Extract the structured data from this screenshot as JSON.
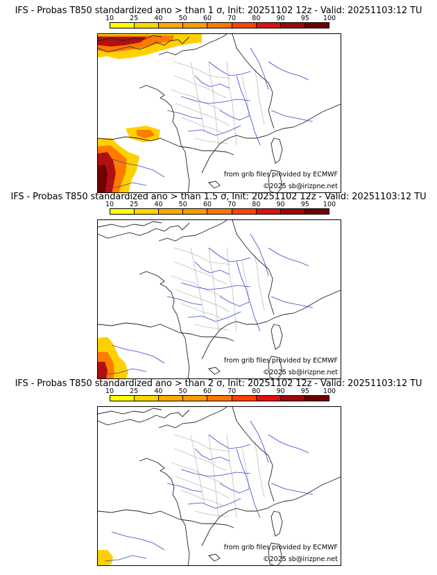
{
  "panels": [
    {
      "title": "IFS - Probas T850  standardized ano > than 1 σ, Init: 20251102 12z - Valid: 20251103:12 TU"
    },
    {
      "title": "IFS - Probas T850  standardized ano > than 1.5 σ, Init: 20251102 12z - Valid: 20251103:12 TU"
    },
    {
      "title": "IFS - Probas T850  standardized ano > than 2 σ, Init: 20251102 12z - Valid: 20251103:12 TU"
    }
  ],
  "colorbar": {
    "ticks": [
      "10",
      "25",
      "40",
      "50",
      "60",
      "70",
      "80",
      "90",
      "95",
      "100"
    ],
    "colors": [
      "#ffff00",
      "#ffd400",
      "#ffaa00",
      "#ff9900",
      "#ff7700",
      "#ff4400",
      "#e01010",
      "#a00808",
      "#700000"
    ]
  },
  "credits": {
    "source": "from grib files provided by ECMWF",
    "copyright": "©2025 sb@irizpne.net"
  }
}
